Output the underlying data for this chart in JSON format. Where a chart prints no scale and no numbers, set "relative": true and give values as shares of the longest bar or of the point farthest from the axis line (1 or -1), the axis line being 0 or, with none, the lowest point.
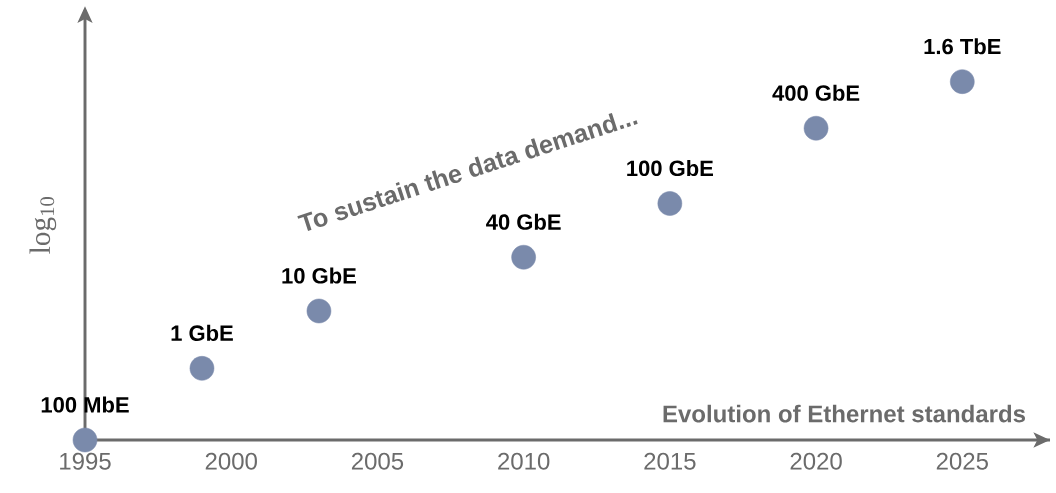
{
  "chart_data": {
    "type": "scatter",
    "relative": true,
    "xlabel": "Evolution of Ethernet standards",
    "ylabel": "log$_{10}$",
    "x": [
      1995,
      1999,
      2003,
      2010,
      2015,
      2020,
      2025
    ],
    "values": [
      0,
      0.2,
      0.36,
      0.51,
      0.66,
      0.87,
      1
    ],
    "color": "#7a8aab",
    "xlim": [
      1995,
      2028
    ],
    "xticks": [
      1995,
      2000,
      2005,
      2010,
      2015,
      2020,
      2025
    ],
    "annotations": [
      "100 MbE",
      "1 GbE",
      "10 GbE",
      "40 GbE",
      "100 GbE",
      "400 GbE",
      "1.6 TbE",
      "To sustain the data demand..."
    ]
  }
}
